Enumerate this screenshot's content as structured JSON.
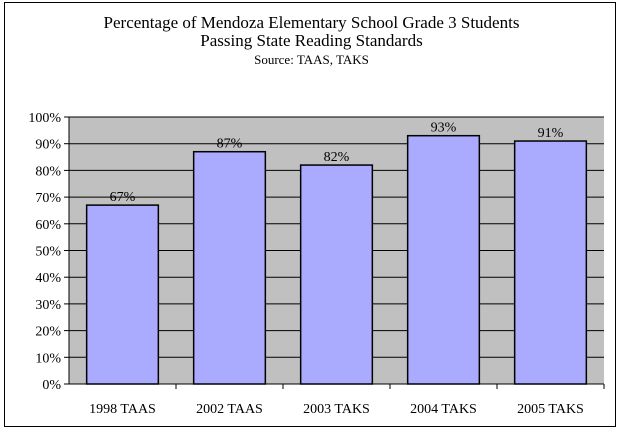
{
  "chart_data": {
    "type": "bar",
    "title": "Percentage of Mendoza  Elementary School Grade 3 Students",
    "subtitle": "Passing State Reading Standards",
    "source": "Source: TAAS, TAKS",
    "categories": [
      "1998 TAAS",
      "2002 TAAS",
      "2003 TAKS",
      "2004 TAKS",
      "2005 TAKS"
    ],
    "values": [
      67,
      87,
      82,
      93,
      91
    ],
    "data_labels": [
      "67%",
      "87%",
      "82%",
      "93%",
      "91%"
    ],
    "ylim": [
      0,
      100
    ],
    "yticks": [
      "0%",
      "10%",
      "20%",
      "30%",
      "40%",
      "50%",
      "60%",
      "70%",
      "80%",
      "90%",
      "100%"
    ],
    "xlabel": "",
    "ylabel": "",
    "grid": true,
    "legend": "none",
    "colors": {
      "bar_fill": "#aaaaff",
      "plot_bg": "#c0c0c0",
      "outline": "#000000"
    }
  }
}
